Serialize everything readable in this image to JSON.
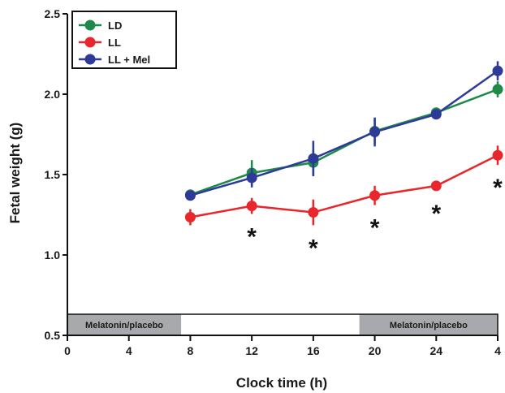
{
  "chart_data": {
    "type": "line",
    "xlabel": "Clock time (h)",
    "ylabel": "Fetal weight (g)",
    "ylim": [
      0.5,
      2.5
    ],
    "yticks": [
      0.5,
      1.0,
      1.5,
      2.0,
      2.5
    ],
    "ytick_labels": [
      "0.5",
      "1.0",
      "1.5",
      "2.0",
      "2.5"
    ],
    "x_positions": [
      0,
      4,
      8,
      12,
      16,
      20,
      24,
      28
    ],
    "x_tick_labels": [
      "0",
      "4",
      "8",
      "12",
      "16",
      "20",
      "24",
      "4"
    ],
    "xlim": [
      0,
      28
    ],
    "legend_position": "top-left",
    "series": [
      {
        "name": "LD",
        "color": "#1e8a4a",
        "x": [
          8,
          12,
          16,
          20,
          24,
          28
        ],
        "values": [
          1.375,
          1.51,
          1.575,
          1.77,
          1.885,
          2.03
        ],
        "error": [
          0.03,
          0.08,
          0.08,
          0.08,
          0.03,
          0.05
        ]
      },
      {
        "name": "LL",
        "color": "#e8262b",
        "x": [
          8,
          12,
          16,
          20,
          24,
          28
        ],
        "values": [
          1.235,
          1.305,
          1.265,
          1.37,
          1.43,
          1.62
        ],
        "error": [
          0.05,
          0.05,
          0.08,
          0.06,
          0.03,
          0.06
        ]
      },
      {
        "name": "LL + Mel",
        "color": "#2e3a97",
        "x": [
          8,
          12,
          16,
          20,
          24,
          28
        ],
        "values": [
          1.37,
          1.48,
          1.6,
          1.765,
          1.875,
          2.145
        ],
        "error": [
          0.02,
          0.06,
          0.11,
          0.09,
          0.03,
          0.06
        ]
      }
    ],
    "significance_markers": [
      {
        "x": 12,
        "label": "*"
      },
      {
        "x": 16,
        "label": "*"
      },
      {
        "x": 20,
        "label": "*"
      },
      {
        "x": 24,
        "label": "*"
      },
      {
        "x": 28,
        "label": "*"
      }
    ],
    "treatment_bands": [
      {
        "x_start": 0,
        "x_end": 7.4,
        "label": "Melatonin/placebo",
        "color": "#a7a9ac"
      },
      {
        "x_start": 19,
        "x_end": 28,
        "label": "Melatonin/placebo",
        "color": "#a7a9ac"
      }
    ]
  }
}
